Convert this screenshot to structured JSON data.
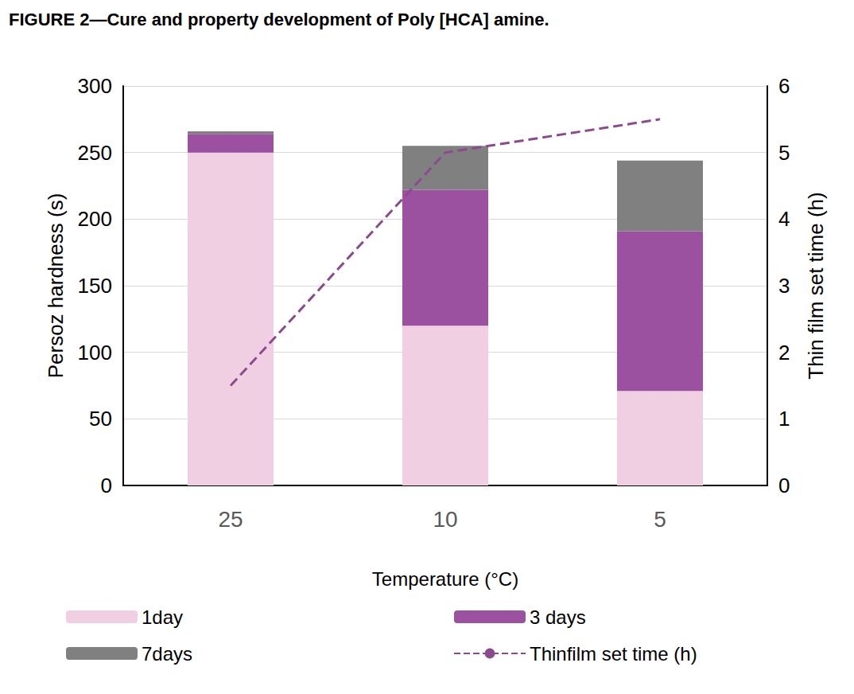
{
  "chart_data": {
    "type": "bar",
    "title": "FIGURE 2—Cure and property development of Poly [HCA] amine.",
    "x_label": "Temperature (°C)",
    "y_label": "Persoz hardness (s)",
    "y2_label": "Thin film set time (h)",
    "categories": [
      "25",
      "10",
      "5"
    ],
    "series": [
      {
        "name": "1day",
        "type": "bar",
        "color": "#f0cfe3",
        "values": [
          250,
          120,
          71
        ]
      },
      {
        "name": "3 days",
        "type": "bar",
        "color": "#9b51a0",
        "values": [
          14,
          102,
          120
        ]
      },
      {
        "name": "7days",
        "type": "bar",
        "color": "#808080",
        "values": [
          2,
          33,
          53
        ]
      },
      {
        "name": "Thinfilm set time (h)",
        "type": "line",
        "axis": "y2",
        "color": "#8b4a8e",
        "line_style": "dashed",
        "marker": "none",
        "values": [
          1.5,
          5.0,
          5.5
        ]
      }
    ],
    "ylim": [
      0,
      300
    ],
    "yticks": [
      0,
      50,
      100,
      150,
      200,
      250,
      300
    ],
    "y2lim": [
      0,
      6
    ],
    "y2ticks": [
      0,
      1,
      2,
      3,
      4,
      5,
      6
    ],
    "stacked": true,
    "grid": true,
    "legend": "bottom"
  }
}
